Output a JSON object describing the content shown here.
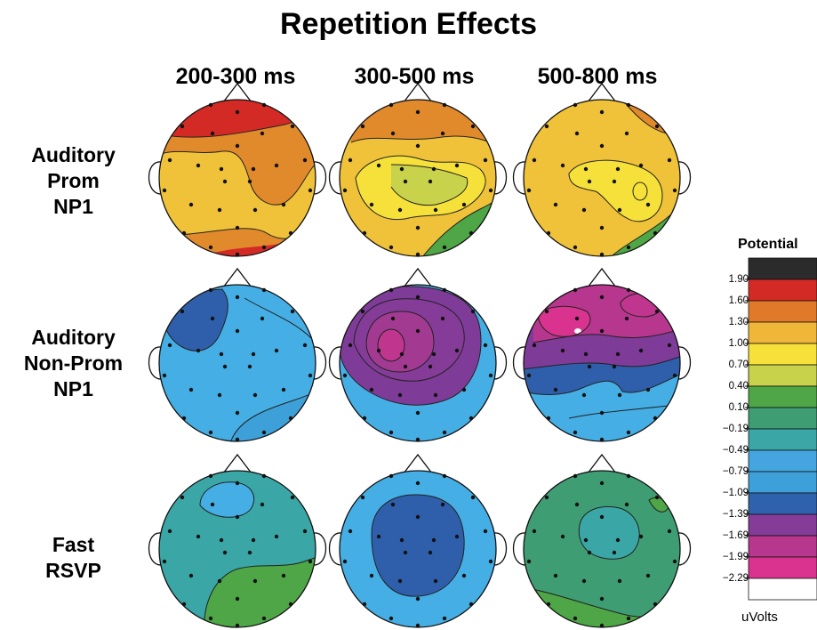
{
  "title": "Repetition Effects",
  "columns": [
    "200-300 ms",
    "300-500 ms",
    "500-800 ms"
  ],
  "rows": [
    {
      "lines": [
        "Auditory",
        "Prom",
        "NP1"
      ]
    },
    {
      "lines": [
        "Auditory",
        "Non-Prom",
        "NP1"
      ]
    },
    {
      "lines": [
        "Fast",
        "RSVP"
      ]
    }
  ],
  "legend": {
    "title": "Potential",
    "unit": "uVolts",
    "ticks": [
      "1.90",
      "1.60",
      "1.30",
      "1.00",
      "0.70",
      "0.40",
      "0.10",
      "−0.19",
      "−0.49",
      "−0.79",
      "−1.09",
      "−1.39",
      "−1.69",
      "−1.99",
      "−2.29"
    ],
    "colors": [
      "#2b2b2b",
      "#d42a26",
      "#e07a2a",
      "#f0b63a",
      "#f6e13a",
      "#c8d24a",
      "#4ea646",
      "#3f9d73",
      "#3aa7a6",
      "#45a6df",
      "#3ea0d8",
      "#2f62ad",
      "#843c98",
      "#b7368e",
      "#d9338f",
      "#ffffff"
    ]
  },
  "colors": {
    "red": "#d42a26",
    "orange": "#e08a2c",
    "gold": "#f0c23a",
    "yellow": "#f6e13a",
    "lime": "#c8d24a",
    "green": "#4ea646",
    "teal": "#3f9d73",
    "cyan": "#3aa7a6",
    "skyblue": "#45aee4",
    "blue": "#2f5fab",
    "purple": "#7e3b97",
    "magenta": "#b7368e"
  }
}
